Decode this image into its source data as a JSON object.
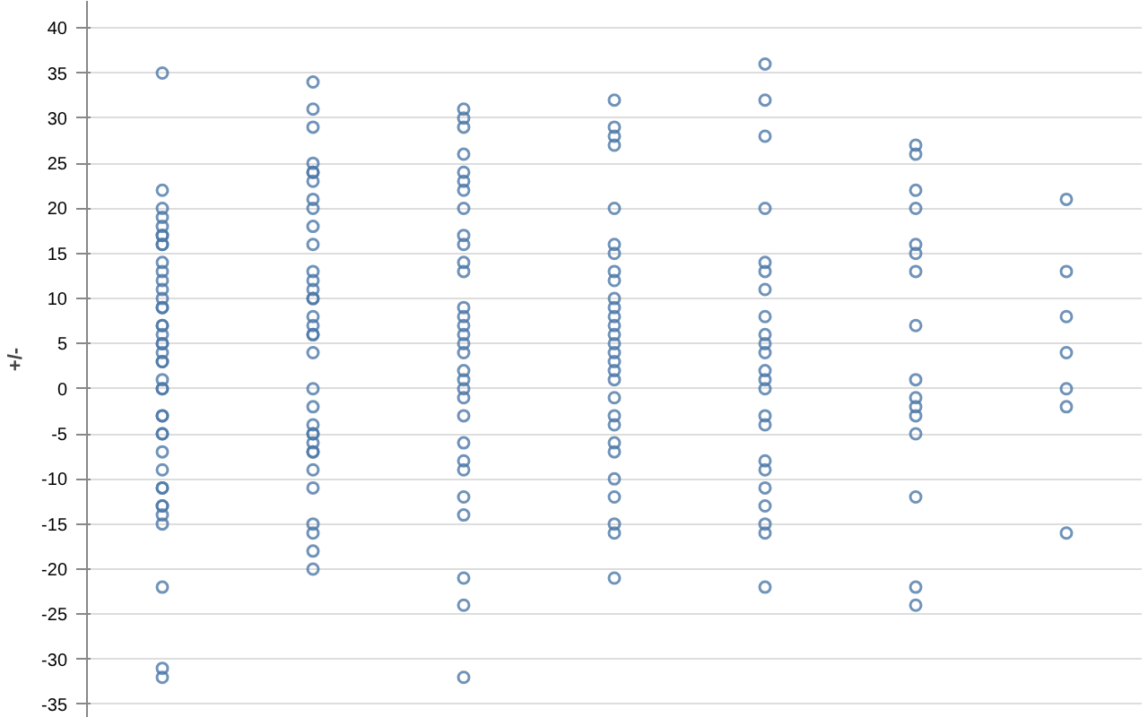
{
  "chart_data": {
    "type": "scatter",
    "ylabel": "+/-",
    "categories": [
      null,
      null,
      null,
      null,
      null,
      null,
      null
    ],
    "ylim": [
      -36.5,
      43
    ],
    "yticks": [
      -35,
      -30,
      -25,
      -20,
      -15,
      -10,
      -5,
      0,
      5,
      10,
      15,
      20,
      25,
      30,
      35,
      40
    ],
    "tick_labels": "y",
    "grid": "y",
    "marker": "circle",
    "series": [
      {
        "color": "#4c78a8",
        "values": [
          35,
          34,
          31,
          32,
          36,
          27,
          21
        ]
      },
      {
        "color": "#4c78a8",
        "values": [
          22,
          31,
          30,
          29,
          32,
          26,
          13
        ]
      },
      {
        "color": "#4c78a8",
        "values": [
          20,
          29,
          29,
          28,
          28,
          22,
          8
        ]
      },
      {
        "color": "#4c78a8",
        "values": [
          19,
          25,
          26,
          27,
          20,
          20,
          4
        ]
      },
      {
        "color": "#4c78a8",
        "values": [
          18,
          24,
          24,
          20,
          14,
          16,
          0
        ]
      },
      {
        "color": "#4c78a8",
        "values": [
          17,
          24,
          23,
          16,
          13,
          15,
          -2
        ]
      },
      {
        "color": "#4c78a8",
        "values": [
          17,
          23,
          22,
          15,
          11,
          13,
          -16
        ]
      },
      {
        "color": "#4c78a8",
        "values": [
          16,
          21,
          20,
          13,
          8,
          7,
          null
        ]
      },
      {
        "color": "#4c78a8",
        "values": [
          16,
          20,
          17,
          12,
          6,
          1,
          null
        ]
      },
      {
        "color": "#4c78a8",
        "values": [
          14,
          18,
          16,
          10,
          5,
          -1,
          null
        ]
      },
      {
        "color": "#4c78a8",
        "values": [
          13,
          16,
          14,
          9,
          4,
          -2,
          null
        ]
      },
      {
        "color": "#4c78a8",
        "values": [
          12,
          13,
          13,
          8,
          2,
          -3,
          null
        ]
      },
      {
        "color": "#4c78a8",
        "values": [
          11,
          12,
          9,
          7,
          1,
          -5,
          null
        ]
      },
      {
        "color": "#4c78a8",
        "values": [
          10,
          11,
          8,
          6,
          0,
          -12,
          null
        ]
      },
      {
        "color": "#4c78a8",
        "values": [
          9,
          10,
          7,
          5,
          -3,
          -22,
          null
        ]
      },
      {
        "color": "#4c78a8",
        "values": [
          9,
          10,
          6,
          4,
          -4,
          -24,
          null
        ]
      },
      {
        "color": "#4c78a8",
        "values": [
          7,
          8,
          5,
          3,
          -8,
          null,
          null
        ]
      },
      {
        "color": "#4c78a8",
        "values": [
          7,
          7,
          4,
          2,
          -9,
          null,
          null
        ]
      },
      {
        "color": "#4c78a8",
        "values": [
          6,
          6,
          2,
          1,
          -11,
          null,
          null
        ]
      },
      {
        "color": "#4c78a8",
        "values": [
          5,
          6,
          1,
          -1,
          -13,
          null,
          null
        ]
      },
      {
        "color": "#4c78a8",
        "values": [
          5,
          4,
          0,
          -3,
          -15,
          null,
          null
        ]
      },
      {
        "color": "#4c78a8",
        "values": [
          4,
          0,
          -1,
          -4,
          -16,
          null,
          null
        ]
      },
      {
        "color": "#4c78a8",
        "values": [
          3,
          -2,
          -3,
          -6,
          -22,
          null,
          null
        ]
      },
      {
        "color": "#4c78a8",
        "values": [
          3,
          -4,
          -6,
          -7,
          null,
          null,
          null
        ]
      },
      {
        "color": "#4c78a8",
        "values": [
          1,
          -5,
          -8,
          -10,
          null,
          null,
          null
        ]
      },
      {
        "color": "#4c78a8",
        "values": [
          0,
          -5,
          -9,
          -12,
          null,
          null,
          null
        ]
      },
      {
        "color": "#4c78a8",
        "values": [
          0,
          -6,
          -12,
          -15,
          null,
          null,
          null
        ]
      },
      {
        "color": "#4c78a8",
        "values": [
          -3,
          -7,
          -14,
          -16,
          null,
          null,
          null
        ]
      },
      {
        "color": "#4c78a8",
        "values": [
          -3,
          -7,
          -21,
          -21,
          null,
          null,
          null
        ]
      },
      {
        "color": "#4c78a8",
        "values": [
          -5,
          -9,
          -24,
          null,
          null,
          null,
          null
        ]
      },
      {
        "color": "#4c78a8",
        "values": [
          -5,
          -11,
          -32,
          null,
          null,
          null,
          null
        ]
      },
      {
        "color": "#4c78a8",
        "values": [
          -7,
          -15,
          null,
          null,
          null,
          null,
          null
        ]
      },
      {
        "color": "#4c78a8",
        "values": [
          -9,
          -16,
          null,
          null,
          null,
          null,
          null
        ]
      },
      {
        "color": "#4c78a8",
        "values": [
          -11,
          -18,
          null,
          null,
          null,
          null,
          null
        ]
      },
      {
        "color": "#4c78a8",
        "values": [
          -11,
          -20,
          null,
          null,
          null,
          null,
          null
        ]
      },
      {
        "color": "#4c78a8",
        "values": [
          -13,
          null,
          null,
          null,
          null,
          null,
          null
        ]
      },
      {
        "color": "#4c78a8",
        "values": [
          -13,
          null,
          null,
          null,
          null,
          null,
          null
        ]
      },
      {
        "color": "#4c78a8",
        "values": [
          -14,
          null,
          null,
          null,
          null,
          null,
          null
        ]
      },
      {
        "color": "#4c78a8",
        "values": [
          -15,
          null,
          null,
          null,
          null,
          null,
          null
        ]
      },
      {
        "color": "#4c78a8",
        "values": [
          -22,
          null,
          null,
          null,
          null,
          null,
          null
        ]
      },
      {
        "color": "#4c78a8",
        "values": [
          -31,
          null,
          null,
          null,
          null,
          null,
          null
        ]
      },
      {
        "color": "#4c78a8",
        "values": [
          -32,
          null,
          null,
          null,
          null,
          null,
          null
        ]
      }
    ]
  }
}
